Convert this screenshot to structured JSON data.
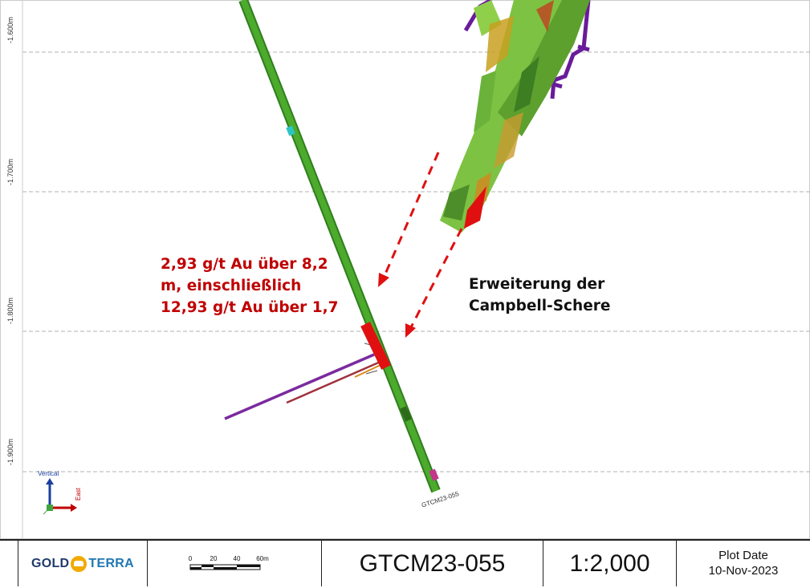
{
  "section": {
    "elevation_labels": [
      "-1.600m",
      "-1.700m",
      "-1.800m",
      "-1.900m"
    ],
    "grade_callout": {
      "lines": [
        "2,93 g/t Au über 8,2",
        "m, einschließlich",
        "12,93 g/t Au über 1,7"
      ],
      "color": "#c00000"
    },
    "shear_label": {
      "lines": [
        "Erweiterung der",
        "Campbell-Schere"
      ]
    },
    "drill_hole_label": "GTCM23-055",
    "axis_triad": {
      "vertical": "Vertical",
      "east": "East"
    },
    "colors": {
      "drill_trace": "#3f9e2a",
      "mineralized_interval": "#e01010",
      "arrow": "#e01010",
      "shear_zone": "#7dc242",
      "structure": "#6a1b9a"
    }
  },
  "title_block": {
    "logo": {
      "left": "GOLD",
      "right": "TERRA"
    },
    "scale_bar": {
      "ticks": [
        "0",
        "20",
        "40",
        "60m"
      ]
    },
    "hole_id": "GTCM23-055",
    "scale": "1:2,000",
    "plot_date_label": "Plot Date",
    "plot_date": "10-Nov-2023"
  }
}
